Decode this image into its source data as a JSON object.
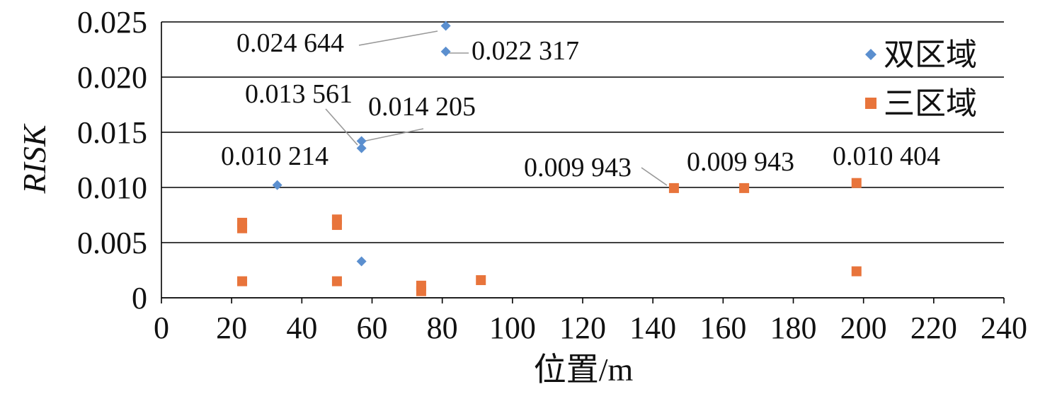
{
  "chart_data": {
    "type": "scatter",
    "title": "",
    "xlabel": "位置/m",
    "ylabel": "RISK",
    "xlim": [
      0,
      240
    ],
    "ylim": [
      0,
      0.025
    ],
    "x_ticks": [
      "0",
      "20",
      "40",
      "60",
      "80",
      "100",
      "120",
      "140",
      "160",
      "180",
      "200",
      "220",
      "240"
    ],
    "y_ticks": [
      "0",
      "0.005",
      "0.010",
      "0.015",
      "0.020",
      "0.025"
    ],
    "grid": "horizontal",
    "legend_position": "top-right",
    "series": [
      {
        "name": "双区域",
        "marker": "diamond",
        "color": "#5b8fcf",
        "points": [
          {
            "x": 33,
            "y": 0.010214
          },
          {
            "x": 57,
            "y": 0.013561
          },
          {
            "x": 57,
            "y": 0.014205
          },
          {
            "x": 57,
            "y": 0.0033
          },
          {
            "x": 81,
            "y": 0.024644
          },
          {
            "x": 81,
            "y": 0.022317
          }
        ]
      },
      {
        "name": "三区域",
        "marker": "square",
        "color": "#e8743b",
        "points": [
          {
            "x": 23,
            "y": 0.0063
          },
          {
            "x": 23,
            "y": 0.0068
          },
          {
            "x": 23,
            "y": 0.0015
          },
          {
            "x": 50,
            "y": 0.0066
          },
          {
            "x": 50,
            "y": 0.0071
          },
          {
            "x": 50,
            "y": 0.0015
          },
          {
            "x": 74,
            "y": 0.0006
          },
          {
            "x": 74,
            "y": 0.0011
          },
          {
            "x": 91,
            "y": 0.0016
          },
          {
            "x": 146,
            "y": 0.009943
          },
          {
            "x": 166,
            "y": 0.009943
          },
          {
            "x": 198,
            "y": 0.010404
          },
          {
            "x": 198,
            "y": 0.0024
          }
        ]
      }
    ],
    "annotations": [
      {
        "text": "0.024 644",
        "x": 81,
        "y": 0.024644
      },
      {
        "text": "0.022 317",
        "x": 81,
        "y": 0.022317
      },
      {
        "text": "0.013 561",
        "x": 57,
        "y": 0.013561
      },
      {
        "text": "0.014 205",
        "x": 57,
        "y": 0.014205
      },
      {
        "text": "0.010 214",
        "x": 33,
        "y": 0.010214
      },
      {
        "text": "0.009 943",
        "x": 146,
        "y": 0.009943
      },
      {
        "text": "0.009 943",
        "x": 166,
        "y": 0.009943
      },
      {
        "text": "0.010 404",
        "x": 198,
        "y": 0.010404
      }
    ]
  }
}
